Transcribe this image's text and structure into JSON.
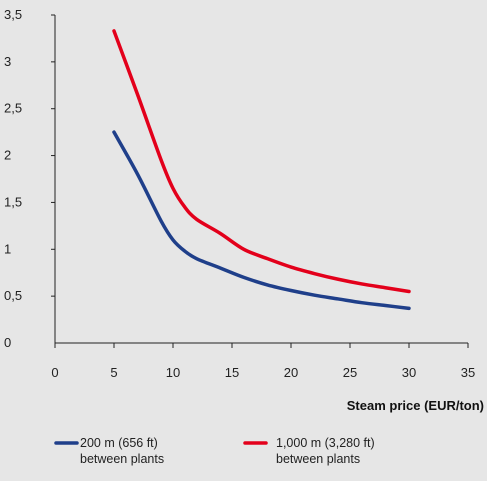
{
  "chart_data": {
    "type": "line",
    "title": "",
    "xlabel": "Steam price (EUR/ton)",
    "ylabel": "",
    "xlim": [
      0,
      35
    ],
    "ylim": [
      0,
      3.5
    ],
    "x_ticks": [
      0,
      5,
      10,
      15,
      20,
      25,
      30,
      35
    ],
    "y_ticks": [
      0,
      0.5,
      1,
      1.5,
      2,
      2.5,
      3,
      3.5
    ],
    "x_tick_labels": [
      "0",
      "5",
      "10",
      "15",
      "20",
      "25",
      "30",
      "35"
    ],
    "y_tick_labels": [
      "0",
      "0,5",
      "1",
      "1,5",
      "2",
      "2,5",
      "3",
      "3,5"
    ],
    "grid": false,
    "legend_position": "bottom",
    "series": [
      {
        "name": "200 m (656 ft)\nbetween plants",
        "legend_line1": "200 m (656 ft)",
        "legend_line2": "between plants",
        "color": "#1f3f8a",
        "x": [
          5,
          7,
          9,
          10,
          11,
          12,
          14,
          16,
          18,
          20,
          22,
          24,
          26,
          28,
          30
        ],
        "values": [
          2.25,
          1.8,
          1.3,
          1.1,
          0.98,
          0.9,
          0.8,
          0.7,
          0.62,
          0.56,
          0.51,
          0.47,
          0.43,
          0.4,
          0.37
        ]
      },
      {
        "name": "1,000 m (3,280 ft)\nbetween plants",
        "legend_line1": "1,000 m (3,280 ft)",
        "legend_line2": "between plants",
        "color": "#e3001b",
        "x": [
          5,
          7,
          9,
          10,
          11,
          12,
          14,
          16,
          18,
          20,
          22,
          24,
          26,
          28,
          30
        ],
        "values": [
          3.33,
          2.65,
          1.95,
          1.65,
          1.45,
          1.32,
          1.17,
          1.0,
          0.9,
          0.81,
          0.74,
          0.68,
          0.63,
          0.59,
          0.55
        ]
      }
    ]
  }
}
